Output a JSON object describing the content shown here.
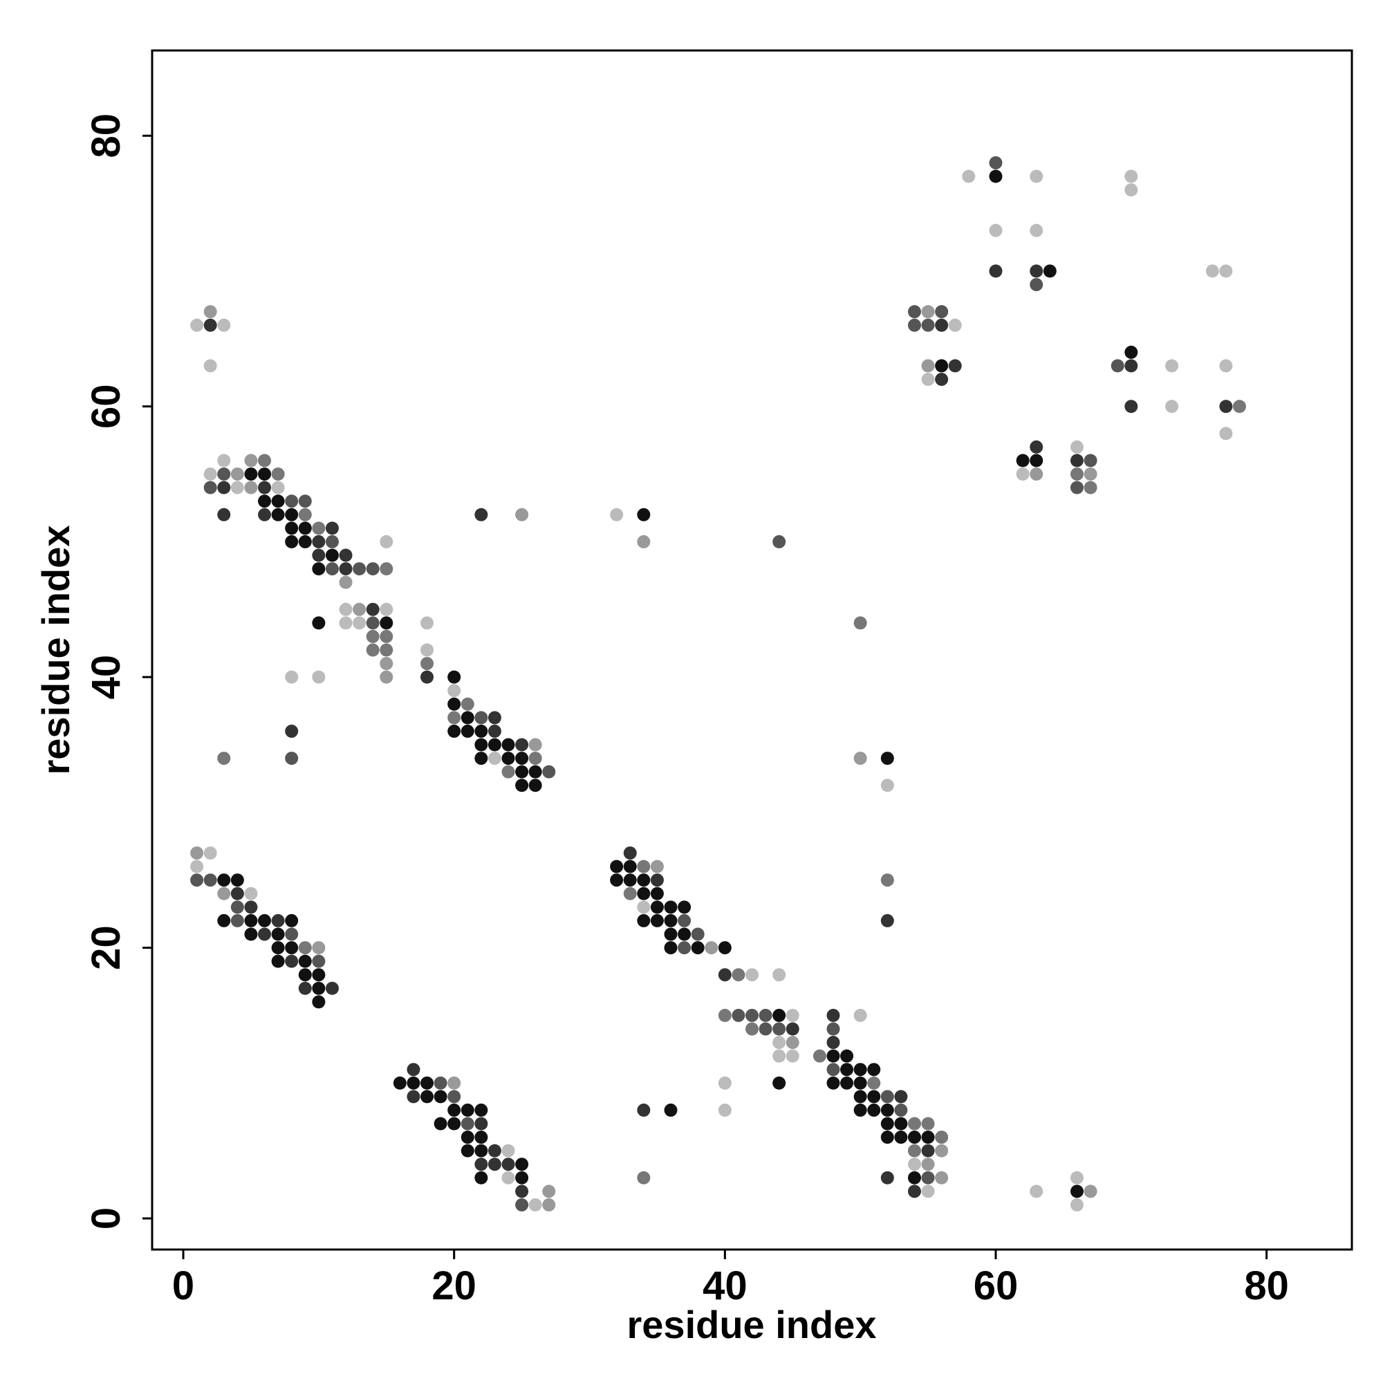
{
  "chart_data": {
    "type": "scatter",
    "title": "",
    "xlabel": "residue index",
    "ylabel": "residue index",
    "xlim": [
      -2.3,
      86.3
    ],
    "ylim": [
      -2.3,
      86.3
    ],
    "xticks": [
      0,
      20,
      40,
      60,
      80
    ],
    "yticks": [
      0,
      20,
      40,
      60,
      80
    ],
    "grid": false,
    "legend": "none",
    "shade_scale": {
      "1": "#111111",
      "2": "#333333",
      "3": "#555555",
      "4": "#777777",
      "5": "#999999",
      "6": "#bbbbbb"
    },
    "points": [
      [
        2,
        66,
        2
      ],
      [
        1,
        66,
        6
      ],
      [
        3,
        66,
        6
      ],
      [
        2,
        67,
        5
      ],
      [
        2,
        63,
        6
      ],
      [
        2,
        55,
        6
      ],
      [
        2,
        54,
        3
      ],
      [
        3,
        56,
        6
      ],
      [
        3,
        55,
        3
      ],
      [
        3,
        54,
        2
      ],
      [
        4,
        55,
        5
      ],
      [
        4,
        54,
        6
      ],
      [
        3,
        52,
        2
      ],
      [
        5,
        56,
        5
      ],
      [
        6,
        56,
        4
      ],
      [
        5,
        55,
        1
      ],
      [
        6,
        55,
        1
      ],
      [
        7,
        55,
        4
      ],
      [
        5,
        54,
        5
      ],
      [
        6,
        54,
        2
      ],
      [
        7,
        54,
        6
      ],
      [
        6,
        53,
        1
      ],
      [
        7,
        53,
        1
      ],
      [
        8,
        53,
        3
      ],
      [
        9,
        53,
        3
      ],
      [
        6,
        52,
        2
      ],
      [
        7,
        52,
        1
      ],
      [
        8,
        52,
        1
      ],
      [
        9,
        52,
        4
      ],
      [
        8,
        51,
        1
      ],
      [
        9,
        51,
        1
      ],
      [
        10,
        51,
        4
      ],
      [
        11,
        51,
        2
      ],
      [
        8,
        50,
        1
      ],
      [
        9,
        50,
        1
      ],
      [
        10,
        50,
        2
      ],
      [
        11,
        50,
        3
      ],
      [
        10,
        49,
        2
      ],
      [
        11,
        49,
        1
      ],
      [
        12,
        49,
        2
      ],
      [
        10,
        48,
        1
      ],
      [
        11,
        48,
        3
      ],
      [
        12,
        48,
        2
      ],
      [
        13,
        48,
        3
      ],
      [
        14,
        48,
        3
      ],
      [
        15,
        48,
        4
      ],
      [
        12,
        47,
        5
      ],
      [
        15,
        50,
        6
      ],
      [
        12,
        45,
        6
      ],
      [
        13,
        45,
        5
      ],
      [
        14,
        45,
        2
      ],
      [
        15,
        45,
        6
      ],
      [
        12,
        44,
        6
      ],
      [
        13,
        44,
        6
      ],
      [
        14,
        44,
        3
      ],
      [
        15,
        44,
        1
      ],
      [
        14,
        43,
        4
      ],
      [
        15,
        43,
        4
      ],
      [
        14,
        42,
        4
      ],
      [
        15,
        42,
        4
      ],
      [
        15,
        41,
        5
      ],
      [
        15,
        40,
        5
      ],
      [
        10,
        44,
        1
      ],
      [
        8,
        40,
        6
      ],
      [
        10,
        40,
        6
      ],
      [
        18,
        44,
        6
      ],
      [
        18,
        42,
        6
      ],
      [
        18,
        41,
        4
      ],
      [
        18,
        40,
        2
      ],
      [
        20,
        40,
        1
      ],
      [
        20,
        39,
        6
      ],
      [
        20,
        38,
        1
      ],
      [
        21,
        38,
        4
      ],
      [
        20,
        37,
        4
      ],
      [
        21,
        37,
        1
      ],
      [
        22,
        37,
        3
      ],
      [
        23,
        37,
        2
      ],
      [
        20,
        36,
        1
      ],
      [
        21,
        36,
        1
      ],
      [
        22,
        36,
        1
      ],
      [
        23,
        36,
        2
      ],
      [
        22,
        35,
        1
      ],
      [
        23,
        35,
        1
      ],
      [
        24,
        35,
        1
      ],
      [
        25,
        35,
        2
      ],
      [
        26,
        35,
        5
      ],
      [
        22,
        34,
        1
      ],
      [
        23,
        34,
        6
      ],
      [
        24,
        34,
        1
      ],
      [
        25,
        34,
        1
      ],
      [
        26,
        34,
        4
      ],
      [
        24,
        33,
        4
      ],
      [
        25,
        33,
        1
      ],
      [
        26,
        33,
        1
      ],
      [
        27,
        33,
        3
      ],
      [
        25,
        32,
        1
      ],
      [
        26,
        32,
        1
      ],
      [
        8,
        36,
        2
      ],
      [
        8,
        34,
        3
      ],
      [
        3,
        34,
        4
      ],
      [
        22,
        52,
        2
      ],
      [
        25,
        52,
        5
      ],
      [
        32,
        52,
        6
      ],
      [
        34,
        52,
        1
      ],
      [
        34,
        50,
        5
      ],
      [
        44,
        50,
        3
      ],
      [
        50,
        44,
        4
      ],
      [
        50,
        34,
        5
      ],
      [
        52,
        34,
        1
      ],
      [
        52,
        32,
        6
      ],
      [
        1,
        27,
        5
      ],
      [
        2,
        27,
        6
      ],
      [
        1,
        26,
        6
      ],
      [
        1,
        25,
        3
      ],
      [
        2,
        25,
        3
      ],
      [
        3,
        25,
        1
      ],
      [
        4,
        25,
        1
      ],
      [
        3,
        24,
        5
      ],
      [
        4,
        24,
        2
      ],
      [
        5,
        24,
        6
      ],
      [
        4,
        23,
        3
      ],
      [
        5,
        23,
        2
      ],
      [
        3,
        22,
        1
      ],
      [
        4,
        22,
        3
      ],
      [
        5,
        22,
        1
      ],
      [
        6,
        22,
        1
      ],
      [
        7,
        22,
        2
      ],
      [
        8,
        22,
        1
      ],
      [
        5,
        21,
        1
      ],
      [
        6,
        21,
        2
      ],
      [
        7,
        21,
        1
      ],
      [
        8,
        21,
        3
      ],
      [
        7,
        20,
        1
      ],
      [
        8,
        20,
        1
      ],
      [
        9,
        20,
        4
      ],
      [
        10,
        20,
        5
      ],
      [
        7,
        19,
        1
      ],
      [
        8,
        19,
        2
      ],
      [
        9,
        19,
        1
      ],
      [
        10,
        19,
        3
      ],
      [
        9,
        18,
        1
      ],
      [
        10,
        18,
        1
      ],
      [
        9,
        17,
        2
      ],
      [
        10,
        17,
        1
      ],
      [
        11,
        17,
        2
      ],
      [
        10,
        16,
        1
      ],
      [
        33,
        27,
        2
      ],
      [
        32,
        26,
        1
      ],
      [
        33,
        26,
        1
      ],
      [
        34,
        26,
        4
      ],
      [
        35,
        26,
        5
      ],
      [
        32,
        25,
        1
      ],
      [
        33,
        25,
        1
      ],
      [
        34,
        25,
        1
      ],
      [
        35,
        25,
        2
      ],
      [
        33,
        24,
        4
      ],
      [
        34,
        24,
        1
      ],
      [
        35,
        24,
        1
      ],
      [
        34,
        23,
        6
      ],
      [
        35,
        23,
        1
      ],
      [
        36,
        23,
        1
      ],
      [
        37,
        23,
        1
      ],
      [
        34,
        22,
        1
      ],
      [
        35,
        22,
        1
      ],
      [
        36,
        22,
        1
      ],
      [
        37,
        22,
        3
      ],
      [
        36,
        21,
        1
      ],
      [
        37,
        21,
        1
      ],
      [
        38,
        21,
        3
      ],
      [
        36,
        20,
        1
      ],
      [
        37,
        20,
        3
      ],
      [
        38,
        20,
        1
      ],
      [
        39,
        20,
        5
      ],
      [
        40,
        20,
        1
      ],
      [
        52,
        25,
        4
      ],
      [
        52,
        22,
        2
      ],
      [
        40,
        18,
        2
      ],
      [
        41,
        18,
        4
      ],
      [
        42,
        18,
        6
      ],
      [
        44,
        18,
        6
      ],
      [
        40,
        15,
        4
      ],
      [
        41,
        15,
        3
      ],
      [
        42,
        15,
        3
      ],
      [
        43,
        15,
        3
      ],
      [
        44,
        15,
        1
      ],
      [
        45,
        15,
        6
      ],
      [
        42,
        14,
        4
      ],
      [
        43,
        14,
        3
      ],
      [
        44,
        14,
        3
      ],
      [
        45,
        14,
        2
      ],
      [
        44,
        13,
        6
      ],
      [
        45,
        13,
        5
      ],
      [
        44,
        12,
        6
      ],
      [
        45,
        12,
        6
      ],
      [
        44,
        10,
        1
      ],
      [
        48,
        15,
        2
      ],
      [
        50,
        15,
        6
      ],
      [
        48,
        14,
        3
      ],
      [
        48,
        13,
        2
      ],
      [
        47,
        12,
        4
      ],
      [
        48,
        12,
        1
      ],
      [
        49,
        12,
        1
      ],
      [
        48,
        11,
        3
      ],
      [
        49,
        11,
        1
      ],
      [
        50,
        11,
        1
      ],
      [
        51,
        11,
        1
      ],
      [
        48,
        10,
        1
      ],
      [
        49,
        10,
        1
      ],
      [
        50,
        10,
        1
      ],
      [
        51,
        10,
        4
      ],
      [
        50,
        9,
        1
      ],
      [
        51,
        9,
        1
      ],
      [
        52,
        9,
        3
      ],
      [
        53,
        9,
        2
      ],
      [
        50,
        8,
        1
      ],
      [
        51,
        8,
        1
      ],
      [
        52,
        8,
        1
      ],
      [
        53,
        8,
        3
      ],
      [
        52,
        7,
        1
      ],
      [
        53,
        7,
        1
      ],
      [
        54,
        7,
        4
      ],
      [
        55,
        7,
        4
      ],
      [
        52,
        6,
        1
      ],
      [
        53,
        6,
        1
      ],
      [
        54,
        6,
        1
      ],
      [
        55,
        6,
        1
      ],
      [
        56,
        6,
        4
      ],
      [
        55,
        5,
        2
      ],
      [
        56,
        5,
        5
      ],
      [
        54,
        5,
        4
      ],
      [
        54,
        4,
        6
      ],
      [
        55,
        4,
        5
      ],
      [
        54,
        3,
        1
      ],
      [
        55,
        3,
        3
      ],
      [
        56,
        3,
        5
      ],
      [
        54,
        2,
        2
      ],
      [
        55,
        2,
        6
      ],
      [
        52,
        3,
        2
      ],
      [
        40,
        10,
        6
      ],
      [
        40,
        8,
        6
      ],
      [
        34,
        8,
        2
      ],
      [
        36,
        8,
        1
      ],
      [
        34,
        3,
        4
      ],
      [
        63,
        2,
        6
      ],
      [
        66,
        3,
        6
      ],
      [
        66,
        2,
        1
      ],
      [
        67,
        2,
        5
      ],
      [
        66,
        1,
        6
      ],
      [
        16,
        10,
        1
      ],
      [
        17,
        11,
        2
      ],
      [
        17,
        10,
        1
      ],
      [
        18,
        10,
        1
      ],
      [
        19,
        10,
        3
      ],
      [
        20,
        10,
        5
      ],
      [
        17,
        9,
        2
      ],
      [
        18,
        9,
        1
      ],
      [
        19,
        9,
        1
      ],
      [
        20,
        9,
        3
      ],
      [
        20,
        8,
        1
      ],
      [
        21,
        8,
        1
      ],
      [
        22,
        8,
        1
      ],
      [
        21,
        7,
        3
      ],
      [
        20,
        7,
        1
      ],
      [
        22,
        7,
        2
      ],
      [
        19,
        7,
        1
      ],
      [
        21,
        6,
        1
      ],
      [
        22,
        6,
        1
      ],
      [
        21,
        5,
        1
      ],
      [
        22,
        5,
        1
      ],
      [
        23,
        5,
        2
      ],
      [
        24,
        5,
        6
      ],
      [
        22,
        4,
        2
      ],
      [
        23,
        4,
        2
      ],
      [
        24,
        4,
        2
      ],
      [
        25,
        4,
        1
      ],
      [
        22,
        3,
        1
      ],
      [
        24,
        3,
        6
      ],
      [
        25,
        3,
        1
      ],
      [
        25,
        2,
        2
      ],
      [
        25,
        1,
        3
      ],
      [
        26,
        1,
        6
      ],
      [
        27,
        1,
        5
      ],
      [
        27,
        2,
        5
      ],
      [
        54,
        67,
        3
      ],
      [
        55,
        67,
        5
      ],
      [
        56,
        67,
        3
      ],
      [
        54,
        66,
        3
      ],
      [
        55,
        66,
        3
      ],
      [
        56,
        66,
        2
      ],
      [
        57,
        66,
        6
      ],
      [
        55,
        63,
        5
      ],
      [
        56,
        63,
        1
      ],
      [
        57,
        63,
        2
      ],
      [
        55,
        62,
        6
      ],
      [
        56,
        62,
        2
      ],
      [
        58,
        77,
        6
      ],
      [
        60,
        78,
        3
      ],
      [
        60,
        77,
        1
      ],
      [
        63,
        77,
        6
      ],
      [
        60,
        73,
        6
      ],
      [
        63,
        73,
        6
      ],
      [
        60,
        70,
        2
      ],
      [
        63,
        70,
        2
      ],
      [
        64,
        70,
        1
      ],
      [
        63,
        69,
        3
      ],
      [
        70,
        77,
        6
      ],
      [
        70,
        76,
        6
      ],
      [
        76,
        70,
        6
      ],
      [
        77,
        70,
        6
      ],
      [
        69,
        63,
        3
      ],
      [
        70,
        64,
        1
      ],
      [
        70,
        63,
        2
      ],
      [
        73,
        63,
        6
      ],
      [
        77,
        63,
        6
      ],
      [
        70,
        60,
        2
      ],
      [
        73,
        60,
        6
      ],
      [
        77,
        60,
        2
      ],
      [
        78,
        60,
        4
      ],
      [
        77,
        58,
        6
      ],
      [
        62,
        56,
        1
      ],
      [
        63,
        57,
        2
      ],
      [
        63,
        56,
        1
      ],
      [
        62,
        55,
        6
      ],
      [
        63,
        55,
        5
      ],
      [
        66,
        57,
        6
      ],
      [
        66,
        56,
        2
      ],
      [
        67,
        56,
        3
      ],
      [
        66,
        55,
        4
      ],
      [
        67,
        55,
        5
      ],
      [
        66,
        54,
        3
      ],
      [
        67,
        54,
        4
      ]
    ]
  }
}
